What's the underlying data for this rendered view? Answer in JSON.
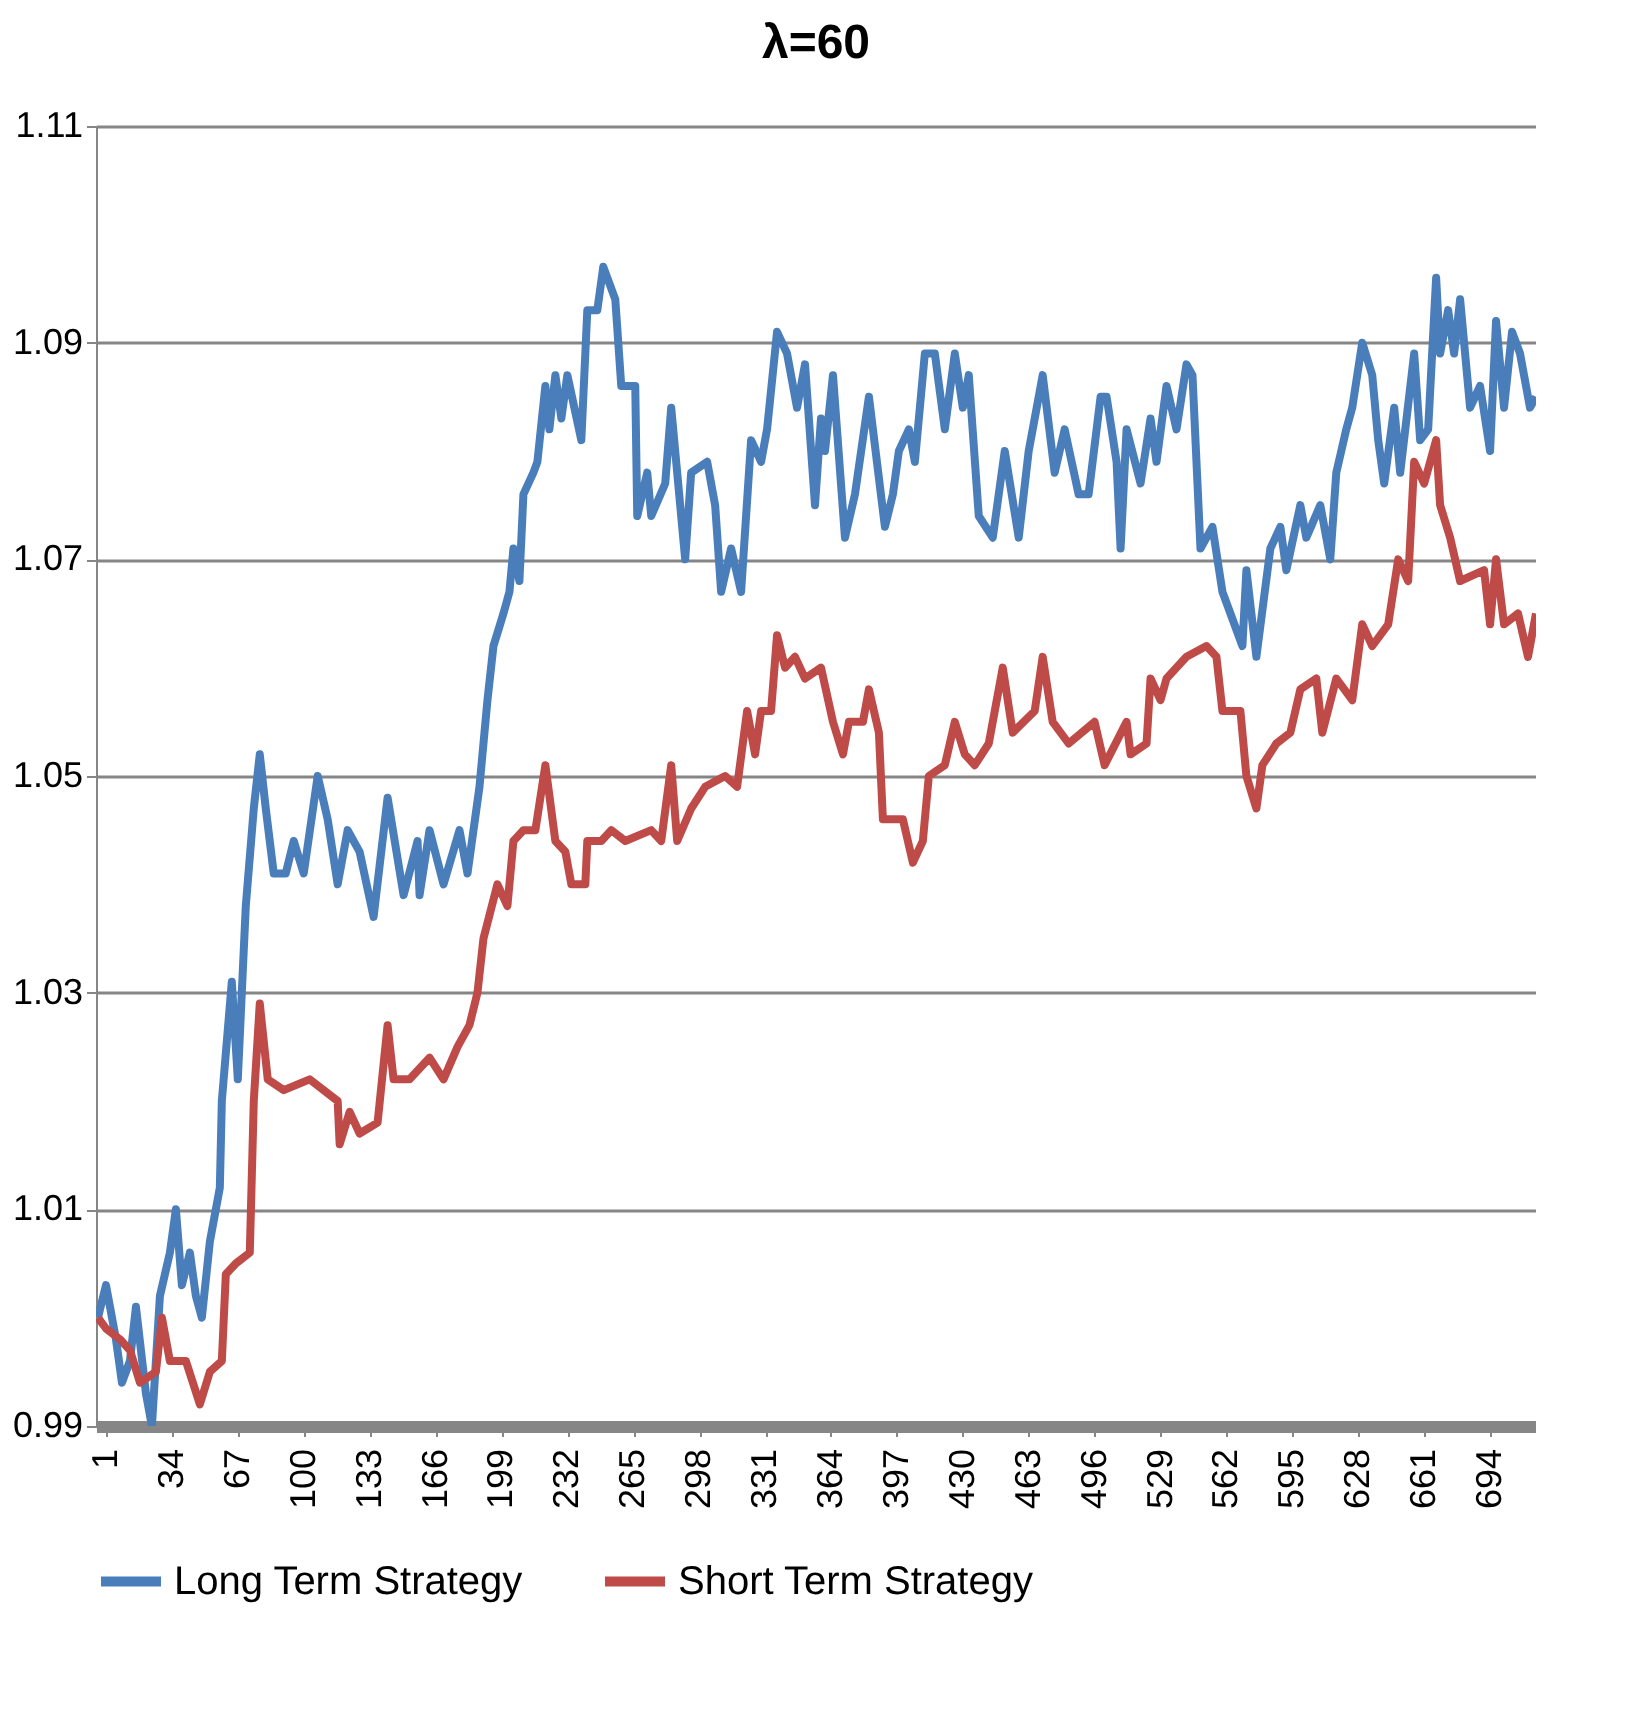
{
  "chart_data": {
    "type": "line",
    "title": "λ=60",
    "xlim": [
      -4,
      717
    ],
    "xticks": [
      1,
      34,
      67,
      100,
      133,
      166,
      199,
      232,
      265,
      298,
      331,
      364,
      397,
      430,
      463,
      496,
      529,
      562,
      595,
      628,
      661,
      694
    ],
    "ylim": [
      0.99,
      1.11
    ],
    "yticks": [
      0.99,
      1.01,
      1.03,
      1.05,
      1.07,
      1.09,
      1.11
    ],
    "grid": "y",
    "legend": "bottom",
    "marker": "none",
    "line_style": "solid",
    "series": [
      {
        "name": "Long Term Strategy",
        "color": "#4a7ebb",
        "x": [
          -3,
          1,
          6,
          9,
          13,
          16,
          21,
          24,
          28,
          33,
          36,
          39,
          43,
          46,
          49,
          53,
          58,
          59,
          64,
          67,
          71,
          75,
          78,
          81,
          85,
          91,
          95,
          100,
          107,
          112,
          117,
          122,
          128,
          135,
          142,
          150,
          157,
          158,
          163,
          170,
          178,
          182,
          188,
          192,
          195,
          200,
          203,
          205,
          208,
          210,
          215,
          217,
          221,
          223,
          226,
          229,
          232,
          239,
          242,
          247,
          250,
          256,
          259,
          266,
          267,
          272,
          274,
          281,
          284,
          291,
          294,
          302,
          306,
          309,
          314,
          319,
          324,
          329,
          332,
          337,
          342,
          347,
          351,
          356,
          359,
          361,
          365,
          371,
          376,
          383,
          391,
          395,
          398,
          403,
          406,
          411,
          416,
          421,
          426,
          430,
          433,
          438,
          445,
          451,
          458,
          463,
          470,
          476,
          481,
          488,
          493,
          499,
          502,
          507,
          509,
          512,
          519,
          524,
          527,
          532,
          537,
          542,
          545,
          549,
          555,
          560,
          570,
          572,
          577,
          584,
          589,
          592,
          599,
          602,
          609,
          614,
          617,
          622,
          625,
          630,
          635,
          638,
          641,
          646,
          649,
          656,
          659,
          663,
          667,
          669,
          673,
          676,
          679,
          684,
          689,
          694,
          697,
          701,
          705,
          709,
          714,
          717
        ],
        "values": [
          1.0,
          1.003,
          0.998,
          0.994,
          0.996,
          1.001,
          0.993,
          0.99,
          1.002,
          1.006,
          1.01,
          1.003,
          1.006,
          1.002,
          1.0,
          1.007,
          1.012,
          1.02,
          1.031,
          1.022,
          1.038,
          1.047,
          1.052,
          1.047,
          1.041,
          1.041,
          1.044,
          1.041,
          1.05,
          1.046,
          1.04,
          1.045,
          1.043,
          1.037,
          1.048,
          1.039,
          1.044,
          1.039,
          1.045,
          1.04,
          1.045,
          1.041,
          1.049,
          1.057,
          1.062,
          1.065,
          1.067,
          1.071,
          1.068,
          1.076,
          1.078,
          1.079,
          1.086,
          1.082,
          1.087,
          1.083,
          1.087,
          1.081,
          1.093,
          1.093,
          1.097,
          1.094,
          1.086,
          1.086,
          1.074,
          1.078,
          1.074,
          1.077,
          1.084,
          1.07,
          1.078,
          1.079,
          1.075,
          1.067,
          1.071,
          1.067,
          1.081,
          1.079,
          1.082,
          1.091,
          1.089,
          1.084,
          1.088,
          1.075,
          1.083,
          1.08,
          1.087,
          1.072,
          1.076,
          1.085,
          1.073,
          1.076,
          1.08,
          1.082,
          1.079,
          1.089,
          1.089,
          1.082,
          1.089,
          1.084,
          1.087,
          1.074,
          1.072,
          1.08,
          1.072,
          1.08,
          1.087,
          1.078,
          1.082,
          1.076,
          1.076,
          1.085,
          1.085,
          1.079,
          1.071,
          1.082,
          1.077,
          1.083,
          1.079,
          1.086,
          1.082,
          1.088,
          1.087,
          1.071,
          1.073,
          1.067,
          1.062,
          1.069,
          1.061,
          1.071,
          1.073,
          1.069,
          1.075,
          1.072,
          1.075,
          1.07,
          1.078,
          1.082,
          1.084,
          1.09,
          1.087,
          1.081,
          1.077,
          1.084,
          1.078,
          1.089,
          1.081,
          1.082,
          1.096,
          1.089,
          1.093,
          1.089,
          1.094,
          1.084,
          1.086,
          1.08,
          1.092,
          1.084,
          1.091,
          1.089,
          1.084,
          1.085
        ]
      },
      {
        "name": "Short Term Strategy",
        "color": "#be4b48",
        "x": [
          -3,
          1,
          8,
          13,
          18,
          26,
          29,
          33,
          41,
          48,
          53,
          59,
          61,
          66,
          73,
          75,
          78,
          82,
          90,
          103,
          117,
          118,
          123,
          128,
          137,
          142,
          145,
          153,
          163,
          170,
          177,
          183,
          187,
          190,
          197,
          202,
          205,
          210,
          216,
          221,
          226,
          231,
          234,
          241,
          242,
          249,
          254,
          261,
          274,
          279,
          284,
          287,
          294,
          301,
          311,
          317,
          322,
          326,
          329,
          334,
          337,
          341,
          346,
          351,
          359,
          365,
          370,
          373,
          380,
          383,
          388,
          390,
          400,
          405,
          410,
          413,
          421,
          426,
          431,
          436,
          443,
          450,
          455,
          466,
          470,
          475,
          483,
          496,
          501,
          512,
          514,
          522,
          524,
          529,
          532,
          542,
          552,
          557,
          560,
          569,
          572,
          577,
          580,
          587,
          594,
          599,
          607,
          610,
          617,
          625,
          630,
          635,
          643,
          648,
          653,
          656,
          661,
          667,
          669,
          674,
          679,
          691,
          694,
          697,
          701,
          708,
          713,
          717
        ],
        "values": [
          1.0,
          0.999,
          0.998,
          0.997,
          0.994,
          0.995,
          1.0,
          0.996,
          0.996,
          0.992,
          0.995,
          0.996,
          1.004,
          1.005,
          1.006,
          1.02,
          1.029,
          1.022,
          1.021,
          1.022,
          1.02,
          1.016,
          1.019,
          1.017,
          1.018,
          1.027,
          1.022,
          1.022,
          1.024,
          1.022,
          1.025,
          1.027,
          1.03,
          1.035,
          1.04,
          1.038,
          1.044,
          1.045,
          1.045,
          1.051,
          1.044,
          1.043,
          1.04,
          1.04,
          1.044,
          1.044,
          1.045,
          1.044,
          1.045,
          1.044,
          1.051,
          1.044,
          1.047,
          1.049,
          1.05,
          1.049,
          1.056,
          1.052,
          1.056,
          1.056,
          1.063,
          1.06,
          1.061,
          1.059,
          1.06,
          1.055,
          1.052,
          1.055,
          1.055,
          1.058,
          1.054,
          1.046,
          1.046,
          1.042,
          1.044,
          1.05,
          1.051,
          1.055,
          1.052,
          1.051,
          1.053,
          1.06,
          1.054,
          1.056,
          1.061,
          1.055,
          1.053,
          1.055,
          1.051,
          1.055,
          1.052,
          1.053,
          1.059,
          1.057,
          1.059,
          1.061,
          1.062,
          1.061,
          1.056,
          1.056,
          1.05,
          1.047,
          1.051,
          1.053,
          1.054,
          1.058,
          1.059,
          1.054,
          1.059,
          1.057,
          1.064,
          1.062,
          1.064,
          1.07,
          1.068,
          1.079,
          1.077,
          1.081,
          1.075,
          1.072,
          1.068,
          1.069,
          1.064,
          1.07,
          1.064,
          1.065,
          1.061,
          1.065
        ]
      }
    ]
  }
}
